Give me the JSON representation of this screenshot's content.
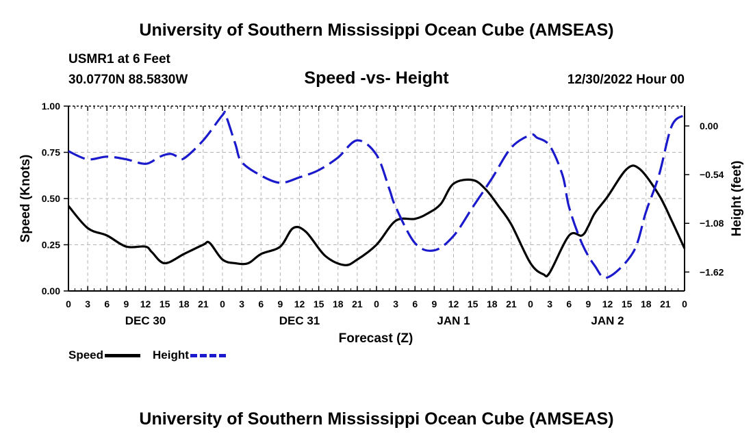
{
  "header": {
    "title": "University of Southern Mississippi Ocean Cube (AMSEAS)",
    "station": "USMR1 at 6 Feet",
    "coords": "30.0770N  88.5830W",
    "chart_title": "Speed -vs- Height",
    "timestamp": "12/30/2022 Hour 00"
  },
  "footer": {
    "title": "University of Southern Mississippi Ocean Cube (AMSEAS)"
  },
  "legend": {
    "speed": "Speed",
    "height": "Height"
  },
  "colors": {
    "speed": "#000000",
    "height": "#1a1acc",
    "grid": "#b4b4b4"
  },
  "chart_data": {
    "type": "line",
    "title": "Speed -vs- Height",
    "xlabel": "Forecast (Z)",
    "ylabel": "Speed (Knots)",
    "y2label": "Height (feet)",
    "x_unit": "forecast hour from 12/30/2022 00Z",
    "xlim": [
      0,
      96
    ],
    "ylim": [
      0,
      1
    ],
    "y2lim": [
      -1.83,
      0.22
    ],
    "x_tick_labels": [
      "0",
      "3",
      "6",
      "9",
      "12",
      "15",
      "18",
      "21",
      "0",
      "3",
      "6",
      "9",
      "12",
      "15",
      "18",
      "21",
      "0",
      "3",
      "6",
      "9",
      "12",
      "15",
      "18",
      "21",
      "0",
      "3",
      "6",
      "9",
      "12",
      "15",
      "18",
      "21",
      "0"
    ],
    "date_labels": [
      {
        "hour": 12,
        "label": "DEC 30"
      },
      {
        "hour": 36,
        "label": "DEC 31"
      },
      {
        "hour": 60,
        "label": "JAN 1"
      },
      {
        "hour": 84,
        "label": "JAN 2"
      }
    ],
    "y_ticks": [
      0.0,
      0.25,
      0.5,
      0.75,
      1.0
    ],
    "y_tick_labels": [
      "0.00",
      "0.25",
      "0.50",
      "0.75",
      "1.00"
    ],
    "y2_ticks": [
      0.0,
      -0.54,
      -1.08,
      -1.62
    ],
    "y2_tick_labels": [
      "0.00",
      "−0.54",
      "−1.08",
      "−1.62"
    ],
    "grid": true,
    "legend_position": "bottom-left",
    "series": [
      {
        "name": "Speed",
        "axis": "left",
        "style": "solid",
        "x": [
          0,
          3,
          6,
          9,
          12,
          13,
          15,
          18,
          21,
          22,
          24,
          26,
          28,
          30,
          33,
          35,
          37,
          40,
          43,
          45,
          48,
          51,
          54,
          56,
          58,
          60,
          63,
          65,
          67,
          69,
          72,
          74,
          75,
          78,
          80,
          81,
          82,
          84,
          87,
          89,
          92,
          94,
          96
        ],
        "values": [
          0.46,
          0.34,
          0.3,
          0.24,
          0.24,
          0.21,
          0.15,
          0.2,
          0.25,
          0.26,
          0.17,
          0.15,
          0.15,
          0.2,
          0.24,
          0.34,
          0.32,
          0.19,
          0.14,
          0.17,
          0.25,
          0.38,
          0.39,
          0.42,
          0.47,
          0.58,
          0.6,
          0.55,
          0.46,
          0.36,
          0.15,
          0.09,
          0.1,
          0.3,
          0.3,
          0.35,
          0.42,
          0.51,
          0.66,
          0.66,
          0.52,
          0.38,
          0.23
        ]
      },
      {
        "name": "Height",
        "axis": "right",
        "style": "dashed",
        "x": [
          0,
          3,
          6,
          9,
          12,
          14,
          15,
          16,
          17,
          18,
          21,
          24,
          24.5,
          26,
          27,
          30,
          33,
          36,
          39,
          42,
          45,
          48,
          50,
          51,
          54,
          57,
          60,
          63,
          66,
          69,
          72,
          73,
          75,
          77,
          78,
          80,
          82,
          84,
          88,
          90,
          92,
          94,
          96
        ],
        "values": [
          -0.28,
          -0.37,
          -0.34,
          -0.37,
          -0.42,
          -0.35,
          -0.32,
          -0.31,
          -0.34,
          -0.36,
          -0.16,
          0.12,
          0.12,
          -0.2,
          -0.4,
          -0.55,
          -0.63,
          -0.57,
          -0.49,
          -0.35,
          -0.16,
          -0.32,
          -0.7,
          -0.9,
          -1.3,
          -1.38,
          -1.22,
          -0.9,
          -0.58,
          -0.24,
          -0.1,
          -0.13,
          -0.22,
          -0.55,
          -0.9,
          -1.3,
          -1.55,
          -1.68,
          -1.4,
          -0.95,
          -0.55,
          0.0,
          0.12
        ]
      }
    ]
  }
}
